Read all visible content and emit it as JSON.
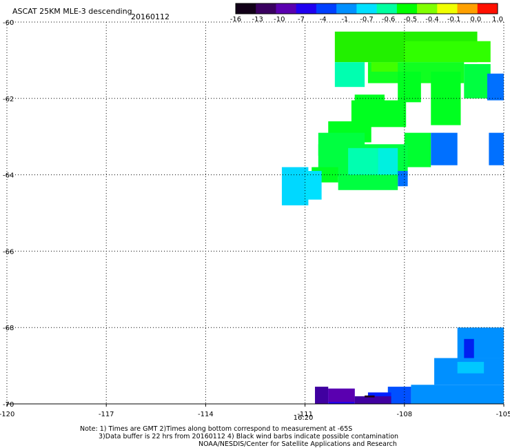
{
  "chart_data": {
    "type": "heatmap",
    "title": "ASCAT 25KM MLE-3 descending",
    "date": "20160112",
    "xlim": [
      -120,
      -105
    ],
    "ylim": [
      -70,
      -60
    ],
    "x_ticks": [
      -120,
      -117,
      -114,
      -111,
      -108,
      -105
    ],
    "x_tick_labels": [
      "-120",
      "-117",
      "-114",
      "-111",
      "-108",
      "-105"
    ],
    "y_ticks": [
      -60,
      -62,
      -64,
      -66,
      -68,
      -70
    ],
    "y_tick_labels": [
      "-60",
      "-62",
      "-64",
      "-66",
      "-68",
      "-70"
    ],
    "grid": true,
    "time_label": {
      "text": "16:20",
      "lon": -111,
      "color": "#cc0000"
    },
    "colorbar": {
      "tick_labels": [
        "-16",
        "-13",
        "-10",
        "-7",
        "-4",
        "-1",
        "-0.7",
        "-0.6",
        "-0.5",
        "-0.4",
        "-0.1",
        "0.0",
        "1.0"
      ],
      "colors": [
        "#120018",
        "#3a0060",
        "#5a00b0",
        "#2000f0",
        "#0040ff",
        "#0090ff",
        "#00e0ff",
        "#00ffa0",
        "#00ff00",
        "#80ff00",
        "#f0ff00",
        "#ffa000",
        "#ff1000"
      ]
    },
    "cells": [
      {
        "lon0": -110.1,
        "lon1": -105.8,
        "lat0": -61.05,
        "lat1": -60.25,
        "color": "#22f000"
      },
      {
        "lon0": -108.0,
        "lon1": -105.4,
        "lat0": -61.05,
        "lat1": -60.5,
        "color": "#30ff00"
      },
      {
        "lon0": -110.1,
        "lon1": -109.2,
        "lat0": -61.7,
        "lat1": -61.05,
        "color": "#00ffb0"
      },
      {
        "lon0": -109.1,
        "lon1": -106.2,
        "lat0": -61.6,
        "lat1": -61.05,
        "color": "#10ff20"
      },
      {
        "lon0": -109.0,
        "lon1": -108.2,
        "lat0": -61.3,
        "lat1": -61.05,
        "color": "#40ff00"
      },
      {
        "lon0": -108.2,
        "lon1": -107.5,
        "lat0": -62.1,
        "lat1": -61.3,
        "color": "#00ff20"
      },
      {
        "lon0": -107.2,
        "lon1": -106.3,
        "lat0": -62.7,
        "lat1": -61.3,
        "color": "#00ff20"
      },
      {
        "lon0": -106.2,
        "lon1": -105.4,
        "lat0": -62.0,
        "lat1": -61.1,
        "color": "#00ff40"
      },
      {
        "lon0": -105.5,
        "lon1": -105.0,
        "lat0": -62.05,
        "lat1": -61.35,
        "color": "#0070ff"
      },
      {
        "lon0": -109.5,
        "lon1": -108.6,
        "lat0": -62.2,
        "lat1": -61.9,
        "color": "#00ff20"
      },
      {
        "lon0": -109.6,
        "lon1": -107.95,
        "lat0": -62.75,
        "lat1": -62.05,
        "color": "#00ff20"
      },
      {
        "lon0": -110.3,
        "lon1": -109.0,
        "lat0": -63.15,
        "lat1": -62.6,
        "color": "#00ff20"
      },
      {
        "lon0": -110.6,
        "lon1": -109.2,
        "lat0": -63.5,
        "lat1": -62.9,
        "color": "#00ff40"
      },
      {
        "lon0": -108.0,
        "lon1": -107.2,
        "lat0": -63.8,
        "lat1": -62.9,
        "color": "#00ff30"
      },
      {
        "lon0": -107.2,
        "lon1": -106.4,
        "lat0": -63.75,
        "lat1": -62.9,
        "color": "#0070ff"
      },
      {
        "lon0": -105.45,
        "lon1": -105.0,
        "lat0": -63.75,
        "lat1": -62.9,
        "color": "#0070ff"
      },
      {
        "lon0": -110.6,
        "lon1": -107.9,
        "lat0": -64.05,
        "lat1": -63.2,
        "color": "#00ff40"
      },
      {
        "lon0": -109.7,
        "lon1": -108.8,
        "lat0": -64.05,
        "lat1": -63.3,
        "color": "#00ffb0"
      },
      {
        "lon0": -108.8,
        "lon1": -108.2,
        "lat0": -64.0,
        "lat1": -63.3,
        "color": "#00f0e0"
      },
      {
        "lon0": -108.2,
        "lon1": -107.9,
        "lat0": -64.3,
        "lat1": -63.9,
        "color": "#0070ff"
      },
      {
        "lon0": -110.0,
        "lon1": -108.2,
        "lat0": -64.4,
        "lat1": -64.0,
        "color": "#00ff40"
      },
      {
        "lon0": -110.8,
        "lon1": -110.0,
        "lat0": -64.2,
        "lat1": -63.8,
        "color": "#00ff20"
      },
      {
        "lon0": -111.7,
        "lon1": -110.9,
        "lat0": -64.8,
        "lat1": -63.8,
        "color": "#00d8ff"
      },
      {
        "lon0": -111.0,
        "lon1": -110.5,
        "lat0": -64.65,
        "lat1": -63.9,
        "color": "#00e0ff"
      },
      {
        "lon0": -106.4,
        "lon1": -105.0,
        "lat0": -68.8,
        "lat1": -68.0,
        "color": "#0090ff"
      },
      {
        "lon0": -106.2,
        "lon1": -105.9,
        "lat0": -69.0,
        "lat1": -68.3,
        "color": "#0020f0"
      },
      {
        "lon0": -107.1,
        "lon1": -105.0,
        "lat0": -69.5,
        "lat1": -68.8,
        "color": "#0090ff"
      },
      {
        "lon0": -107.8,
        "lon1": -105.0,
        "lat0": -70.0,
        "lat1": -69.5,
        "color": "#0090ff"
      },
      {
        "lon0": -106.4,
        "lon1": -105.6,
        "lat0": -69.2,
        "lat1": -68.9,
        "color": "#00c8ff"
      },
      {
        "lon0": -108.5,
        "lon1": -107.8,
        "lat0": -70.0,
        "lat1": -69.55,
        "color": "#0050ff"
      },
      {
        "lon0": -109.1,
        "lon1": -108.4,
        "lat0": -70.0,
        "lat1": -69.7,
        "color": "#0020ff"
      },
      {
        "lon0": -110.7,
        "lon1": -110.3,
        "lat0": -70.0,
        "lat1": -69.55,
        "color": "#4000a0"
      },
      {
        "lon0": -110.3,
        "lon1": -109.5,
        "lat0": -70.0,
        "lat1": -69.6,
        "color": "#2000f0"
      },
      {
        "lon0": -110.3,
        "lon1": -109.5,
        "lat0": -69.95,
        "lat1": -69.6,
        "color": "#5a00b0"
      },
      {
        "lon0": -109.5,
        "lon1": -108.4,
        "lat0": -70.0,
        "lat1": -69.8,
        "color": "#4000a0"
      },
      {
        "lon0": -109.2,
        "lon1": -108.9,
        "lat0": -69.83,
        "lat1": -69.78,
        "color": "#200018"
      }
    ]
  },
  "footer": {
    "line1": "Note: 1) Times are GMT 2)Times along bottom correspond to measurement at -65S",
    "line2": "3)Data buffer is 22 hrs from 20160112 4) Black wind barbs indicate possible contamination",
    "line3": "NOAA/NESDIS/Center for Satellite Applications and Research"
  }
}
